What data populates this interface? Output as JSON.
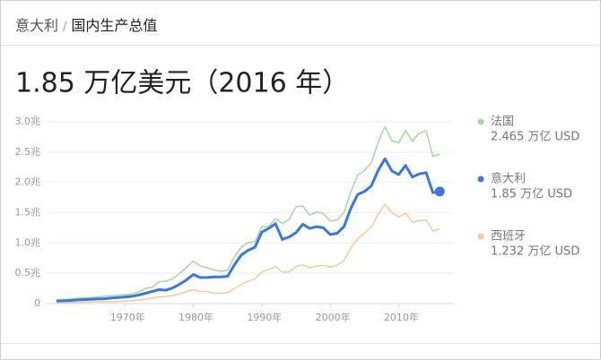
{
  "breadcrumb": {
    "parent": "意大利",
    "separator": "/",
    "current": "国内生产总值"
  },
  "chart_data": {
    "type": "line",
    "title": "1.85 万亿美元（2016 年）",
    "x": [
      1960,
      1961,
      1962,
      1963,
      1964,
      1965,
      1966,
      1967,
      1968,
      1969,
      1970,
      1971,
      1972,
      1973,
      1974,
      1975,
      1976,
      1977,
      1978,
      1979,
      1980,
      1981,
      1982,
      1983,
      1984,
      1985,
      1986,
      1987,
      1988,
      1989,
      1990,
      1991,
      1992,
      1993,
      1994,
      1995,
      1996,
      1997,
      1998,
      1999,
      2000,
      2001,
      2002,
      2003,
      2004,
      2005,
      2006,
      2007,
      2008,
      2009,
      2010,
      2011,
      2012,
      2013,
      2014,
      2015,
      2016
    ],
    "series": [
      {
        "name": "法国",
        "label": "2.465 万亿 USD",
        "color": "#a9d5a1",
        "width": 1.5,
        "values": [
          0.06,
          0.07,
          0.075,
          0.085,
          0.095,
          0.1,
          0.11,
          0.12,
          0.13,
          0.14,
          0.15,
          0.16,
          0.19,
          0.25,
          0.27,
          0.36,
          0.37,
          0.41,
          0.5,
          0.6,
          0.7,
          0.62,
          0.59,
          0.56,
          0.53,
          0.55,
          0.77,
          0.93,
          1.01,
          1.02,
          1.27,
          1.27,
          1.4,
          1.32,
          1.39,
          1.6,
          1.61,
          1.46,
          1.51,
          1.49,
          1.36,
          1.38,
          1.5,
          1.84,
          2.12,
          2.2,
          2.32,
          2.66,
          2.92,
          2.69,
          2.65,
          2.86,
          2.68,
          2.81,
          2.85,
          2.43,
          2.465
        ]
      },
      {
        "name": "意大利",
        "label": "1.85 万亿 USD",
        "color": "#3b78d8",
        "width": 3,
        "marker_last": true,
        "values": [
          0.04,
          0.045,
          0.05,
          0.06,
          0.065,
          0.07,
          0.075,
          0.08,
          0.09,
          0.1,
          0.11,
          0.12,
          0.14,
          0.17,
          0.2,
          0.23,
          0.22,
          0.26,
          0.32,
          0.39,
          0.48,
          0.43,
          0.43,
          0.44,
          0.44,
          0.45,
          0.64,
          0.8,
          0.88,
          0.93,
          1.18,
          1.24,
          1.32,
          1.06,
          1.1,
          1.17,
          1.31,
          1.24,
          1.27,
          1.25,
          1.14,
          1.16,
          1.27,
          1.57,
          1.8,
          1.85,
          1.94,
          2.2,
          2.39,
          2.19,
          2.13,
          2.28,
          2.09,
          2.14,
          2.16,
          1.83,
          1.85
        ]
      },
      {
        "name": "西班牙",
        "label": "1.232 万亿 USD",
        "color": "#f8c99a",
        "width": 1.5,
        "values": [
          0.012,
          0.014,
          0.016,
          0.02,
          0.024,
          0.026,
          0.03,
          0.033,
          0.03,
          0.034,
          0.04,
          0.045,
          0.054,
          0.072,
          0.09,
          0.11,
          0.12,
          0.13,
          0.16,
          0.2,
          0.23,
          0.2,
          0.2,
          0.17,
          0.17,
          0.18,
          0.25,
          0.31,
          0.37,
          0.41,
          0.52,
          0.56,
          0.61,
          0.52,
          0.52,
          0.61,
          0.64,
          0.59,
          0.62,
          0.63,
          0.6,
          0.63,
          0.71,
          0.91,
          1.07,
          1.16,
          1.26,
          1.48,
          1.64,
          1.5,
          1.43,
          1.49,
          1.34,
          1.37,
          1.38,
          1.2,
          1.232
        ]
      }
    ],
    "xlim": [
      1957,
      2018
    ],
    "xticks": [
      {
        "value": 1970,
        "label": "1970年"
      },
      {
        "value": 1980,
        "label": "1980年"
      },
      {
        "value": 1990,
        "label": "1990年"
      },
      {
        "value": 2000,
        "label": "2000年"
      },
      {
        "value": 2010,
        "label": "2010年"
      }
    ],
    "ylim": [
      0,
      3
    ],
    "yticks": [
      0,
      {
        "value": 0.5,
        "label": "0.5兆"
      },
      {
        "value": 1.0,
        "label": "1.0兆"
      },
      {
        "value": 1.5,
        "label": "1.5兆"
      },
      {
        "value": 2.0,
        "label": "2.0兆"
      },
      {
        "value": 2.5,
        "label": "2.5兆"
      },
      {
        "value": 3.0,
        "label": "3.0兆"
      }
    ],
    "grid": true
  }
}
